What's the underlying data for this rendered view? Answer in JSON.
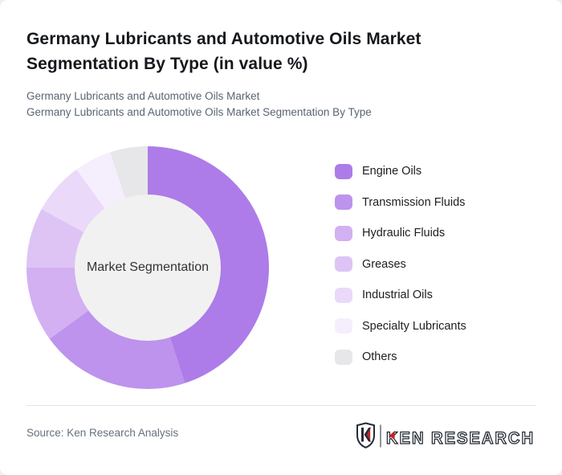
{
  "page": {
    "background_color": "#eef0f2",
    "card_color": "#ffffff"
  },
  "header": {
    "title": "Germany Lubricants and Automotive Oils Market Segmentation By Type (in value %)",
    "subtitle_line1": "Germany Lubricants and Automotive Oils Market",
    "subtitle_line2": "Germany Lubricants and Automotive Oils Market Segmentation By Type"
  },
  "chart_data": {
    "type": "pie",
    "subtype": "donut",
    "title": "Germany Lubricants and Automotive Oils Market Segmentation By Type (in value %)",
    "center_label": "Market Segmentation",
    "center_color": "#f1f1f1",
    "inner_radius_ratio": 0.6,
    "start_angle_deg": 0,
    "direction": "clockwise",
    "legend_position": "right",
    "values_unit": "%",
    "categories": [
      "Engine Oils",
      "Transmission Fluids",
      "Hydraulic Fluids",
      "Greases",
      "Industrial Oils",
      "Specialty Lubricants",
      "Others"
    ],
    "values": [
      45,
      20,
      10,
      8,
      7,
      5,
      5
    ],
    "colors": [
      "#ad7ce8",
      "#bd93ed",
      "#d2b0f2",
      "#ddc4f5",
      "#ead9f9",
      "#f5eefd",
      "#e7e6e8"
    ]
  },
  "footer": {
    "source_label": "Source: Ken Research Analysis",
    "logo_monogram": "K",
    "logo_text": "KEN RESEARCH",
    "logo_dark_color": "#232a34",
    "logo_accent_color": "#c42127",
    "logo_divider_color": "#8d939a"
  }
}
